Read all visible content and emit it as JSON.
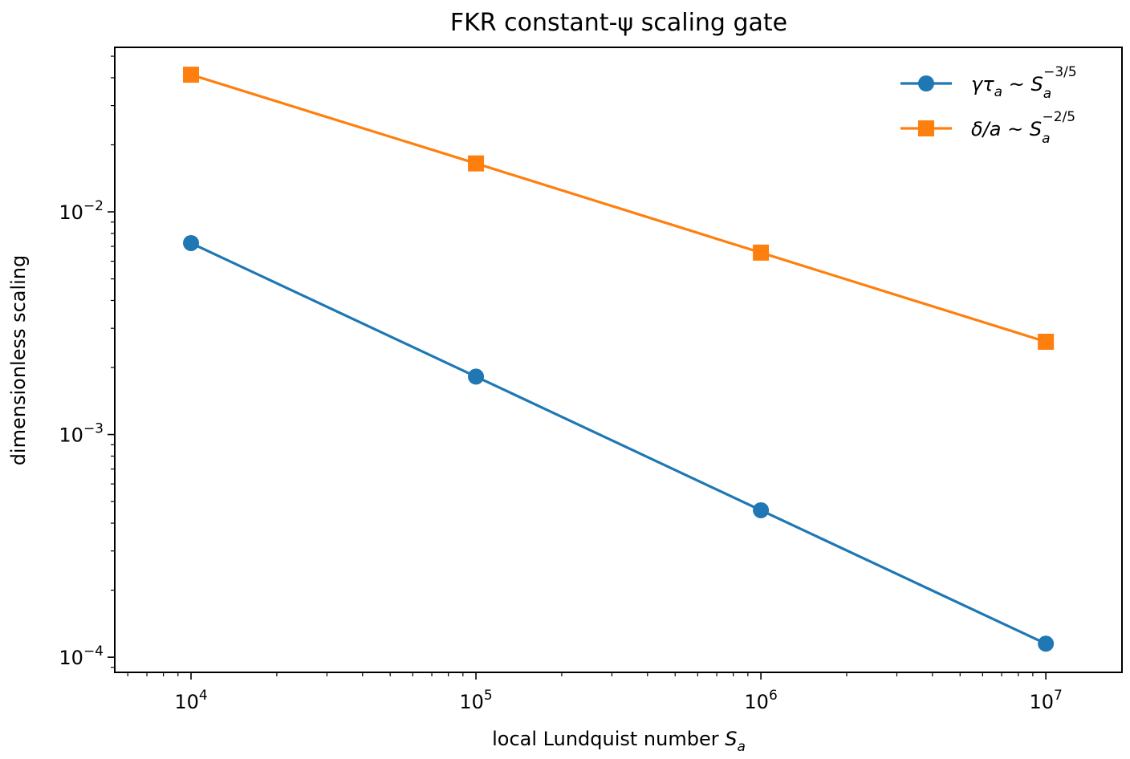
{
  "chart_data": {
    "type": "line",
    "title": "FKR constant-ψ scaling gate",
    "xlabel": {
      "text": "local Lundquist number ",
      "var": "S",
      "sub": "a"
    },
    "ylabel": "dimensionless scaling",
    "x_scale": "log",
    "y_scale": "log",
    "xlim": [
      5400,
      18500000
    ],
    "ylim": [
      8.55e-05,
      0.0548
    ],
    "x_ticks": [
      {
        "base": "10",
        "exp": "4",
        "value": 10000
      },
      {
        "base": "10",
        "exp": "5",
        "value": 100000
      },
      {
        "base": "10",
        "exp": "6",
        "value": 1000000
      },
      {
        "base": "10",
        "exp": "7",
        "value": 10000000
      }
    ],
    "y_ticks": [
      {
        "base": "10",
        "exp": "−4",
        "value": 0.0001
      },
      {
        "base": "10",
        "exp": "−3",
        "value": 0.001
      },
      {
        "base": "10",
        "exp": "−2",
        "value": 0.01
      }
    ],
    "grid": false,
    "legend_position": "top-right",
    "x": [
      10000,
      100000,
      1000000,
      10000000
    ],
    "series": [
      {
        "name": "γτa ~ Sa^−3/5",
        "legend": {
          "main": "γτ",
          "main_sub": "a",
          "rel": " ~ ",
          "var": "S",
          "sub": "a",
          "sup": "−3/5"
        },
        "values": [
          0.00724,
          0.00182,
          0.000457,
          0.000115
        ],
        "color": "#1f77b4",
        "marker": "circle"
      },
      {
        "name": "δ/a ~ Sa^−2/5",
        "legend": {
          "main": "δ/a",
          "main_sub": "",
          "rel": " ~ ",
          "var": "S",
          "sub": "a",
          "sup": "−2/5"
        },
        "values": [
          0.0413,
          0.0165,
          0.00656,
          0.00261
        ],
        "color": "#ff7f0e",
        "marker": "square"
      }
    ]
  }
}
